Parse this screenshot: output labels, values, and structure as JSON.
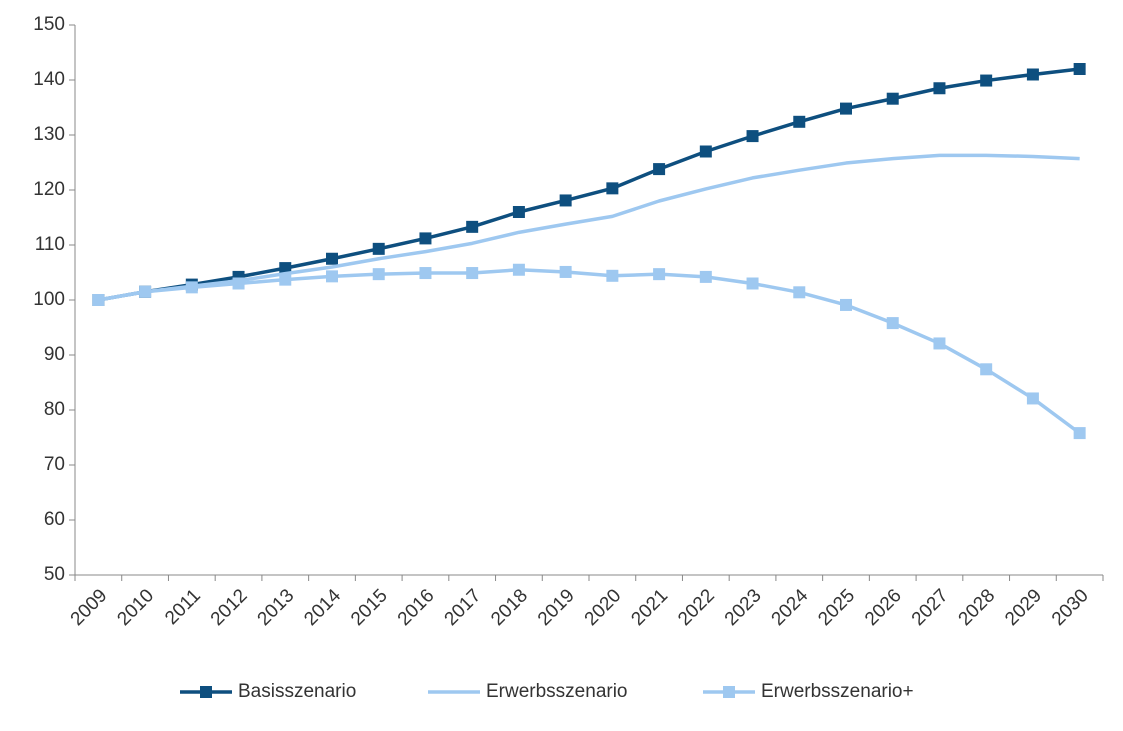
{
  "chart_data": {
    "type": "line",
    "categories": [
      "2009",
      "2010",
      "2011",
      "2012",
      "2013",
      "2014",
      "2015",
      "2016",
      "2017",
      "2018",
      "2019",
      "2020",
      "2021",
      "2022",
      "2023",
      "2024",
      "2025",
      "2026",
      "2027",
      "2028",
      "2029",
      "2030"
    ],
    "series": [
      {
        "name": "Basisszenario",
        "color": "#0e4f7f",
        "marker": "square",
        "values": [
          100,
          101.5,
          102.8,
          104.2,
          105.8,
          107.5,
          109.3,
          111.2,
          113.3,
          116.0,
          118.1,
          120.3,
          123.8,
          127.0,
          129.8,
          132.4,
          134.8,
          136.6,
          138.5,
          139.9,
          141.0,
          142.0
        ]
      },
      {
        "name": "Erwerbsszenario",
        "color": "#9ec8f0",
        "marker": "none",
        "values": [
          100,
          101.5,
          102.5,
          103.5,
          104.8,
          106.0,
          107.5,
          108.8,
          110.3,
          112.3,
          113.8,
          115.2,
          118.0,
          120.2,
          122.2,
          123.6,
          124.9,
          125.7,
          126.3,
          126.3,
          126.1,
          125.7
        ]
      },
      {
        "name": "Erwerbsszenario+",
        "color": "#9ec8f0",
        "marker": "square",
        "values": [
          100,
          101.5,
          102.3,
          103.0,
          103.7,
          104.3,
          104.7,
          104.9,
          104.9,
          105.5,
          105.1,
          104.4,
          104.7,
          104.2,
          103.0,
          101.4,
          99.1,
          95.8,
          92.1,
          87.4,
          82.1,
          75.8
        ]
      }
    ],
    "ylim": [
      50,
      150
    ],
    "yticks": [
      50,
      60,
      70,
      80,
      90,
      100,
      110,
      120,
      130,
      140,
      150
    ],
    "grid": false,
    "legend": "bottom"
  }
}
